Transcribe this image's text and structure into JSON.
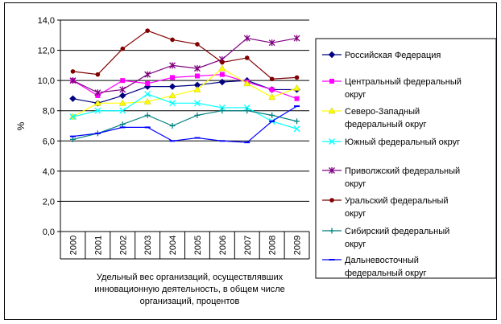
{
  "chart_data": {
    "type": "line",
    "ylabel": "%",
    "ylim": [
      0,
      14
    ],
    "yticks": [
      "0,0",
      "2,0",
      "4,0",
      "6,0",
      "8,0",
      "10,0",
      "12,0",
      "14,0"
    ],
    "categories": [
      "2000",
      "2001",
      "2002",
      "2003",
      "2004",
      "2005",
      "2006",
      "2007",
      "2008",
      "2009"
    ],
    "caption_lines": [
      "Удельный вес организаций, осуществлявших",
      "инновационную деятельность, в общем числе",
      "организаций, процентов"
    ],
    "grid": "horizontal",
    "legend_position": "right",
    "series": [
      {
        "name_lines": [
          "Российская Федерация"
        ],
        "color": "#000080",
        "marker": "diamond",
        "values": [
          8.8,
          8.5,
          9.0,
          9.6,
          9.6,
          9.7,
          9.9,
          10.0,
          9.4,
          9.4
        ]
      },
      {
        "name_lines": [
          "Центральный федеральный",
          "округ"
        ],
        "color": "#ff00ff",
        "marker": "square",
        "values": [
          10.0,
          9.0,
          10.0,
          9.8,
          10.2,
          10.3,
          10.4,
          9.9,
          9.4,
          8.8
        ]
      },
      {
        "name_lines": [
          "Северо-Западный",
          "федеральный округ"
        ],
        "color": "#ffff00",
        "marker": "triangle",
        "values": [
          7.6,
          8.5,
          8.5,
          8.6,
          9.0,
          9.4,
          10.8,
          9.8,
          8.9,
          9.5
        ]
      },
      {
        "name_lines": [
          "Южный федеральный округ"
        ],
        "color": "#00ffff",
        "marker": "x",
        "values": [
          7.6,
          8.0,
          8.0,
          9.1,
          8.5,
          8.5,
          8.2,
          8.2,
          7.3,
          6.8
        ]
      },
      {
        "name_lines": [
          "Приволжский федеральный",
          "округ"
        ],
        "color": "#800080",
        "marker": "star",
        "values": [
          10.0,
          9.2,
          9.4,
          10.4,
          11.0,
          10.8,
          11.4,
          12.8,
          12.5,
          12.8
        ]
      },
      {
        "name_lines": [
          "Уральский федеральный",
          "округ"
        ],
        "color": "#800000",
        "marker": "dot",
        "values": [
          10.6,
          10.4,
          12.1,
          13.3,
          12.7,
          12.4,
          11.2,
          11.5,
          10.1,
          10.2
        ]
      },
      {
        "name_lines": [
          "Сибирский федеральный",
          "округ"
        ],
        "color": "#008080",
        "marker": "plus",
        "values": [
          6.1,
          6.5,
          7.1,
          7.7,
          7.0,
          7.7,
          8.0,
          8.0,
          7.7,
          7.3
        ]
      },
      {
        "name_lines": [
          "Дальневосточный",
          "федеральный округ"
        ],
        "color": "#0000ff",
        "marker": "dash",
        "values": [
          6.3,
          6.5,
          6.9,
          6.9,
          6.0,
          6.2,
          6.0,
          5.9,
          7.3,
          8.3
        ]
      }
    ]
  }
}
